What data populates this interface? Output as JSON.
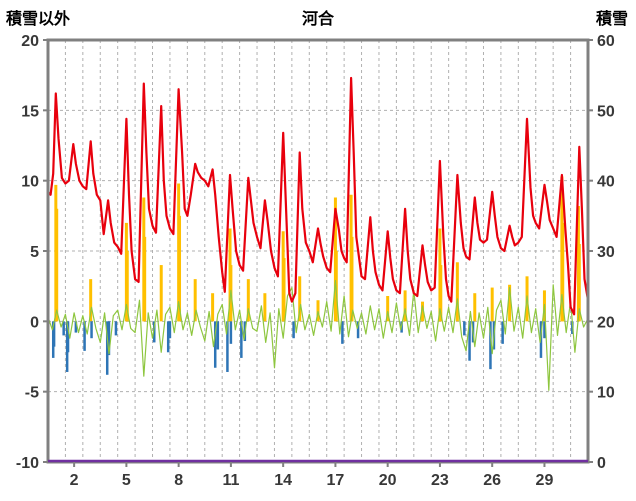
{
  "titles": {
    "left": "積雪以外",
    "center": "河合",
    "right": "積雪"
  },
  "axes": {
    "left_ticks": [
      20,
      15,
      10,
      5,
      0,
      -5,
      -10
    ],
    "right_ticks": [
      60,
      50,
      40,
      30,
      20,
      10,
      0
    ],
    "x_ticks": [
      2,
      5,
      8,
      11,
      14,
      17,
      20,
      23,
      26,
      29
    ],
    "left_range": [
      -10,
      20
    ],
    "right_range": [
      0,
      60
    ],
    "x_range": [
      0,
      31
    ],
    "grid_h_values": [
      15,
      10,
      5,
      0,
      -5
    ]
  },
  "colors": {
    "red": "#e8000d",
    "green": "#8ec63f",
    "blue": "#2e75b6",
    "yellow": "#ffc000",
    "purple": "#7030a0",
    "grid": "#b0b0b0",
    "frame": "#808080",
    "tick_text": "#383838",
    "title_text": "#000000"
  },
  "chart_data": {
    "type": "line",
    "title": "河合",
    "ylabel_left": "積雪以外",
    "ylabel_right": "積雪",
    "x_unit": "day of month",
    "ylim_left": [
      -10,
      20
    ],
    "ylim_right": [
      0,
      60
    ],
    "grid": true,
    "series": [
      {
        "name": "series-purple-snow",
        "color": "purple",
        "mode": "line",
        "axis": "right",
        "width": 2.5,
        "points": [
          [
            0,
            0
          ],
          [
            31,
            0
          ]
        ]
      },
      {
        "name": "series-yellow-bars",
        "color": "yellow",
        "mode": "bars",
        "axis": "left",
        "width": 3,
        "points": [
          [
            0.45,
            9.7
          ],
          [
            0.5,
            8.0
          ],
          [
            2.45,
            3.0
          ],
          [
            4.5,
            7.0
          ],
          [
            4.55,
            5.0
          ],
          [
            5.5,
            8.8
          ],
          [
            5.55,
            6.0
          ],
          [
            6.5,
            4.0
          ],
          [
            7.5,
            9.8
          ],
          [
            7.55,
            7.5
          ],
          [
            8.45,
            3.0
          ],
          [
            9.45,
            2.0
          ],
          [
            10.45,
            6.6
          ],
          [
            10.5,
            4.0
          ],
          [
            11.5,
            3.0
          ],
          [
            12.45,
            2.0
          ],
          [
            13.5,
            6.4
          ],
          [
            13.55,
            4.5
          ],
          [
            14.45,
            3.2
          ],
          [
            15.5,
            1.5
          ],
          [
            16.5,
            8.8
          ],
          [
            16.55,
            5.0
          ],
          [
            17.4,
            9.0
          ],
          [
            17.45,
            6.0
          ],
          [
            19.5,
            1.8
          ],
          [
            20.5,
            2.2
          ],
          [
            21.5,
            1.4
          ],
          [
            22.5,
            6.6
          ],
          [
            22.55,
            4.0
          ],
          [
            23.5,
            4.2
          ],
          [
            24.5,
            2.0
          ],
          [
            25.5,
            2.4
          ],
          [
            26.5,
            2.6
          ],
          [
            27.5,
            3.2
          ],
          [
            28.5,
            2.2
          ],
          [
            29.5,
            10.3
          ],
          [
            29.55,
            7.0
          ],
          [
            30.45,
            8.2
          ],
          [
            30.5,
            5.5
          ]
        ]
      },
      {
        "name": "series-blue-bars",
        "color": "blue",
        "mode": "bars",
        "axis": "left",
        "width": 2.5,
        "points": [
          [
            0.3,
            -2.6
          ],
          [
            0.35,
            -1.8
          ],
          [
            0.9,
            -1.0
          ],
          [
            1.1,
            -3.6
          ],
          [
            1.15,
            -2.2
          ],
          [
            1.6,
            -0.8
          ],
          [
            2.1,
            -2.1
          ],
          [
            2.5,
            -1.2
          ],
          [
            3.4,
            -3.8
          ],
          [
            3.5,
            -2.4
          ],
          [
            3.9,
            -1.0
          ],
          [
            6.1,
            -1.5
          ],
          [
            6.9,
            -2.2
          ],
          [
            7.0,
            -1.2
          ],
          [
            9.6,
            -3.3
          ],
          [
            9.75,
            -2.0
          ],
          [
            10.3,
            -3.6
          ],
          [
            10.5,
            -1.6
          ],
          [
            11.1,
            -2.6
          ],
          [
            11.3,
            -1.4
          ],
          [
            14.1,
            -1.2
          ],
          [
            16.9,
            -1.6
          ],
          [
            17.8,
            -1.2
          ],
          [
            20.3,
            -0.8
          ],
          [
            23.9,
            -1.0
          ],
          [
            24.2,
            -2.8
          ],
          [
            24.4,
            -1.5
          ],
          [
            25.4,
            -3.4
          ],
          [
            25.6,
            -2.0
          ],
          [
            26.1,
            -1.6
          ],
          [
            28.3,
            -2.6
          ],
          [
            28.5,
            -1.2
          ],
          [
            30.1,
            -0.9
          ]
        ]
      },
      {
        "name": "series-green-line",
        "color": "green",
        "mode": "step-line",
        "axis": "left",
        "width": 1.2,
        "t0": 0,
        "dt": 0.25,
        "values": [
          0.3,
          -0.6,
          0.8,
          -0.4,
          0.5,
          -1.2,
          0.6,
          -0.8,
          0.4,
          -0.9,
          1.0,
          -0.5,
          -1.5,
          0.6,
          -2.3,
          0.4,
          0.8,
          -0.6,
          1.2,
          -0.5,
          -0.8,
          1.5,
          -3.9,
          0.6,
          -1.2,
          0.8,
          -2.2,
          0.5,
          1.0,
          -0.8,
          1.4,
          -0.6,
          0.6,
          -1.0,
          0.8,
          -0.4,
          -1.4,
          0.7,
          -1.8,
          0.5,
          1.2,
          -0.9,
          2.2,
          -0.6,
          0.8,
          -1.3,
          0.9,
          -0.5,
          -0.7,
          1.1,
          -1.5,
          0.6,
          -3.3,
          0.9,
          -1.2,
          1.8,
          2.4,
          -0.8,
          1.2,
          -0.6,
          0.5,
          -1.0,
          0.7,
          -0.4,
          1.4,
          -0.7,
          2.9,
          -0.9,
          1.8,
          -1.1,
          0.8,
          -0.5,
          0.6,
          -0.9,
          1.1,
          -0.6,
          0.9,
          -1.2,
          0.7,
          -0.8,
          1.3,
          -0.6,
          0.9,
          -1.0,
          2.2,
          -0.8,
          1.1,
          -0.5,
          0.7,
          -1.4,
          0.9,
          -0.7,
          1.0,
          -0.8,
          1.6,
          -1.1,
          -2.1,
          0.7,
          -1.8,
          0.6,
          -1.2,
          1.0,
          -2.3,
          0.8,
          1.5,
          -0.9,
          2.4,
          -0.7,
          1.0,
          -1.2,
          1.8,
          -0.8,
          0.9,
          -1.5,
          1.2,
          -4.9,
          2.6,
          -1.0,
          1.9,
          -0.8,
          1.4,
          -2.2,
          0.9,
          -0.4,
          0.2
        ]
      },
      {
        "name": "series-red-line",
        "color": "red",
        "mode": "line",
        "axis": "left",
        "width": 2.2,
        "points": [
          [
            0,
            9.2
          ],
          [
            0.15,
            9
          ],
          [
            0.3,
            10.5
          ],
          [
            0.45,
            16.2
          ],
          [
            0.6,
            13
          ],
          [
            0.8,
            10.2
          ],
          [
            1,
            9.8
          ],
          [
            1.2,
            10
          ],
          [
            1.45,
            12.6
          ],
          [
            1.6,
            11.2
          ],
          [
            1.8,
            10
          ],
          [
            2,
            9.6
          ],
          [
            2.2,
            9.4
          ],
          [
            2.45,
            12.8
          ],
          [
            2.6,
            10.5
          ],
          [
            2.8,
            9
          ],
          [
            3,
            8.6
          ],
          [
            3.2,
            6.2
          ],
          [
            3.45,
            8.6
          ],
          [
            3.6,
            7
          ],
          [
            3.8,
            5.6
          ],
          [
            4,
            5.3
          ],
          [
            4.2,
            4.8
          ],
          [
            4.5,
            14.4
          ],
          [
            4.65,
            9
          ],
          [
            4.8,
            5
          ],
          [
            5,
            3
          ],
          [
            5.2,
            2.8
          ],
          [
            5.5,
            16.9
          ],
          [
            5.65,
            12
          ],
          [
            5.8,
            8
          ],
          [
            6,
            6.8
          ],
          [
            6.2,
            6.3
          ],
          [
            6.5,
            15.3
          ],
          [
            6.65,
            10
          ],
          [
            6.8,
            7.5
          ],
          [
            7,
            6.6
          ],
          [
            7.2,
            6.2
          ],
          [
            7.5,
            16.5
          ],
          [
            7.7,
            12
          ],
          [
            7.85,
            8
          ],
          [
            8,
            7.5
          ],
          [
            8.2,
            9
          ],
          [
            8.45,
            11.2
          ],
          [
            8.6,
            10.6
          ],
          [
            8.8,
            10.2
          ],
          [
            9,
            10
          ],
          [
            9.2,
            9.6
          ],
          [
            9.45,
            10.8
          ],
          [
            9.6,
            9
          ],
          [
            9.8,
            6
          ],
          [
            10,
            3.5
          ],
          [
            10.15,
            2.1
          ],
          [
            10.45,
            10.4
          ],
          [
            10.6,
            8
          ],
          [
            10.8,
            5
          ],
          [
            11,
            4
          ],
          [
            11.2,
            3.6
          ],
          [
            11.5,
            10.2
          ],
          [
            11.65,
            8.6
          ],
          [
            11.8,
            7
          ],
          [
            12,
            6
          ],
          [
            12.2,
            5.2
          ],
          [
            12.45,
            8.6
          ],
          [
            12.6,
            7.2
          ],
          [
            12.8,
            5
          ],
          [
            13,
            3.8
          ],
          [
            13.2,
            3.2
          ],
          [
            13.5,
            13.4
          ],
          [
            13.7,
            7
          ],
          [
            13.85,
            2
          ],
          [
            14,
            1.4
          ],
          [
            14.2,
            2
          ],
          [
            14.45,
            12
          ],
          [
            14.6,
            8
          ],
          [
            14.8,
            5.6
          ],
          [
            15,
            5
          ],
          [
            15.2,
            4.2
          ],
          [
            15.5,
            6.6
          ],
          [
            15.65,
            5.5
          ],
          [
            15.8,
            4.6
          ],
          [
            16,
            3.8
          ],
          [
            16.2,
            3.5
          ],
          [
            16.5,
            8
          ],
          [
            16.7,
            6.5
          ],
          [
            16.85,
            5
          ],
          [
            17,
            4.5
          ],
          [
            17.15,
            4.2
          ],
          [
            17.4,
            17.3
          ],
          [
            17.55,
            12
          ],
          [
            17.7,
            6
          ],
          [
            18,
            3.2
          ],
          [
            18.2,
            3
          ],
          [
            18.5,
            7.4
          ],
          [
            18.65,
            5
          ],
          [
            18.8,
            3.5
          ],
          [
            19,
            2.6
          ],
          [
            19.2,
            2.2
          ],
          [
            19.5,
            6.4
          ],
          [
            19.65,
            4.5
          ],
          [
            19.8,
            3
          ],
          [
            20,
            2.2
          ],
          [
            20.2,
            2
          ],
          [
            20.5,
            8
          ],
          [
            20.65,
            5
          ],
          [
            20.8,
            3
          ],
          [
            21,
            2
          ],
          [
            21.2,
            1.8
          ],
          [
            21.5,
            5.4
          ],
          [
            21.65,
            4
          ],
          [
            21.8,
            2.8
          ],
          [
            22,
            2.2
          ],
          [
            22.2,
            2.4
          ],
          [
            22.5,
            11.4
          ],
          [
            22.7,
            6
          ],
          [
            22.85,
            3
          ],
          [
            23,
            1.8
          ],
          [
            23.15,
            1.4
          ],
          [
            23.5,
            10.4
          ],
          [
            23.7,
            7
          ],
          [
            23.85,
            5.2
          ],
          [
            24,
            4.6
          ],
          [
            24.2,
            4.4
          ],
          [
            24.5,
            8.8
          ],
          [
            24.65,
            7
          ],
          [
            24.8,
            5.8
          ],
          [
            25,
            5.6
          ],
          [
            25.2,
            5.8
          ],
          [
            25.5,
            9.2
          ],
          [
            25.65,
            7.5
          ],
          [
            25.8,
            6
          ],
          [
            26,
            5.2
          ],
          [
            26.2,
            5
          ],
          [
            26.5,
            6.8
          ],
          [
            26.65,
            6
          ],
          [
            26.8,
            5.4
          ],
          [
            27,
            5.6
          ],
          [
            27.2,
            6
          ],
          [
            27.5,
            14.4
          ],
          [
            27.7,
            9.5
          ],
          [
            27.85,
            7.5
          ],
          [
            28,
            7
          ],
          [
            28.2,
            6.6
          ],
          [
            28.5,
            9.7
          ],
          [
            28.65,
            8.5
          ],
          [
            28.8,
            7.2
          ],
          [
            29,
            6.6
          ],
          [
            29.2,
            6
          ],
          [
            29.5,
            10.4
          ],
          [
            29.7,
            6.5
          ],
          [
            29.85,
            4
          ],
          [
            30,
            1
          ],
          [
            30.2,
            0.5
          ],
          [
            30.5,
            12.4
          ],
          [
            30.65,
            8
          ],
          [
            30.8,
            3
          ],
          [
            31,
            1.5
          ]
        ]
      }
    ]
  }
}
